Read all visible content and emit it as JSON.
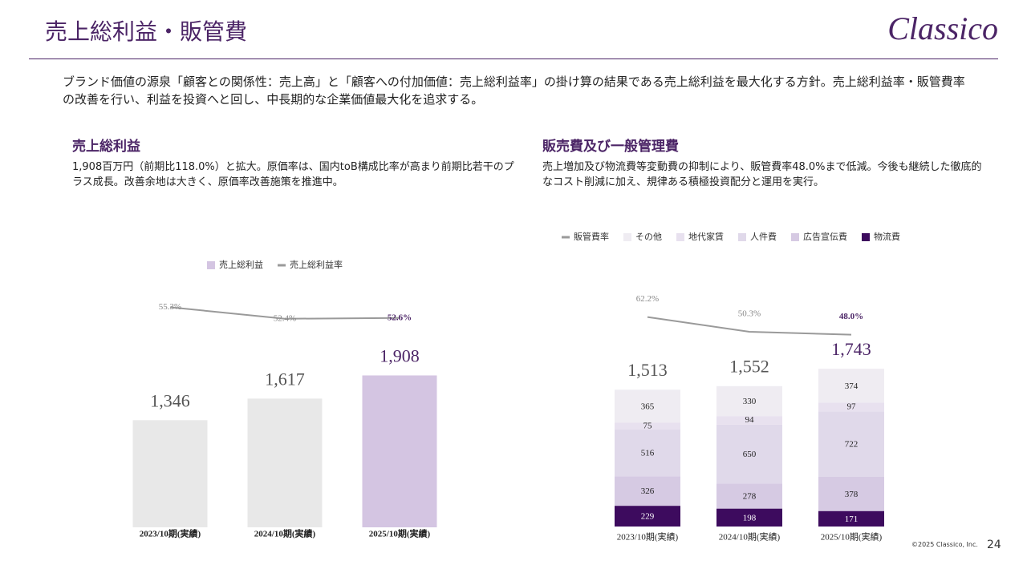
{
  "header": {
    "title": "売上総利益・販管費",
    "logo": "Classico"
  },
  "intro": "ブランド価値の源泉「顧客との関係性：売上高」と「顧客への付加価値：売上総利益率」の掛け算の結果である売上総利益を最大化する方針。売上総利益率・販管費率の改善を行い、利益を投資へと回し、中長期的な企業価値最大化を追求する。",
  "sections": [
    {
      "heading": "売上総利益",
      "text": "1,908百万円（前期比118.0%）と拡大。原価率は、国内toB構成比率が高まり前期比若干のプラス成長。改善余地は大きく、原価率改善施策を推進中。"
    },
    {
      "heading": "販売費及び一般管理費",
      "text": "売上増加及び物流費等変動費の抑制により、販管費率48.0%まで低減。今後も継続した徹底的なコスト削減に加え、規律ある積極投資配分と運用を実行。"
    }
  ],
  "footer": {
    "copyright": "©2025 Classico, Inc.",
    "page": 24
  },
  "chart_data": [
    {
      "type": "bar",
      "categories": [
        "2023/10期(実績)",
        "2024/10期(実績)",
        "2025/10期(実績)"
      ],
      "series": [
        {
          "name": "売上総利益",
          "color": "#d4c5e2",
          "colors": [
            "#e8e8e8",
            "#e8e8e8",
            "#d4c5e2"
          ],
          "label_colors": [
            "#555555",
            "#555555",
            "#4b2466"
          ],
          "values": [
            1346,
            1617,
            1908
          ],
          "value_labels": [
            "1,346",
            "1,617",
            "1,908"
          ]
        },
        {
          "name": "売上総利益率",
          "type": "line",
          "axis": "y2",
          "color": "#9a9a9a",
          "label_colors": [
            "#888888",
            "#888888",
            "#4b2466"
          ],
          "values": [
            55.3,
            52.4,
            52.6
          ],
          "value_labels": [
            "55.3%",
            "52.4%",
            "52.6%"
          ]
        }
      ],
      "ylim": [
        0,
        3000
      ],
      "y2lim": [
        0,
        60
      ]
    },
    {
      "type": "stacked_bar",
      "categories": [
        "2023/10期(実績)",
        "2024/10期(実績)",
        "2025/10期(実績)"
      ],
      "series": [
        {
          "name": "販管費率",
          "type": "line",
          "axis": "y2",
          "color": "#9a9a9a",
          "label_colors": [
            "#888888",
            "#888888",
            "#4b2466"
          ],
          "values": [
            62.2,
            50.3,
            48.0
          ],
          "value_labels": [
            "62.2%",
            "50.3%",
            "48.0%"
          ]
        },
        {
          "name": "その他",
          "color": "#efecf2",
          "label_color": "#222222",
          "values": [
            365,
            330,
            374
          ]
        },
        {
          "name": "地代家賃",
          "color": "#e8e1ef",
          "label_color": "#222222",
          "values": [
            75,
            94,
            97
          ]
        },
        {
          "name": "人件費",
          "color": "#e0d9ea",
          "label_color": "#222222",
          "values": [
            516,
            650,
            722
          ]
        },
        {
          "name": "広告宣伝費",
          "color": "#d6cae3",
          "label_color": "#222222",
          "values": [
            326,
            278,
            378
          ]
        },
        {
          "name": "物流費",
          "color": "#3d0b5e",
          "label_color": "#ffffff",
          "values": [
            229,
            198,
            171
          ]
        }
      ],
      "totals": [
        1513,
        1552,
        1743
      ],
      "total_labels": [
        "1,513",
        "1,552",
        "1,743"
      ],
      "total_label_colors": [
        "#555555",
        "#555555",
        "#4b2466"
      ],
      "ylim": [
        0,
        2000
      ],
      "y2lim": [
        0,
        80
      ]
    }
  ]
}
